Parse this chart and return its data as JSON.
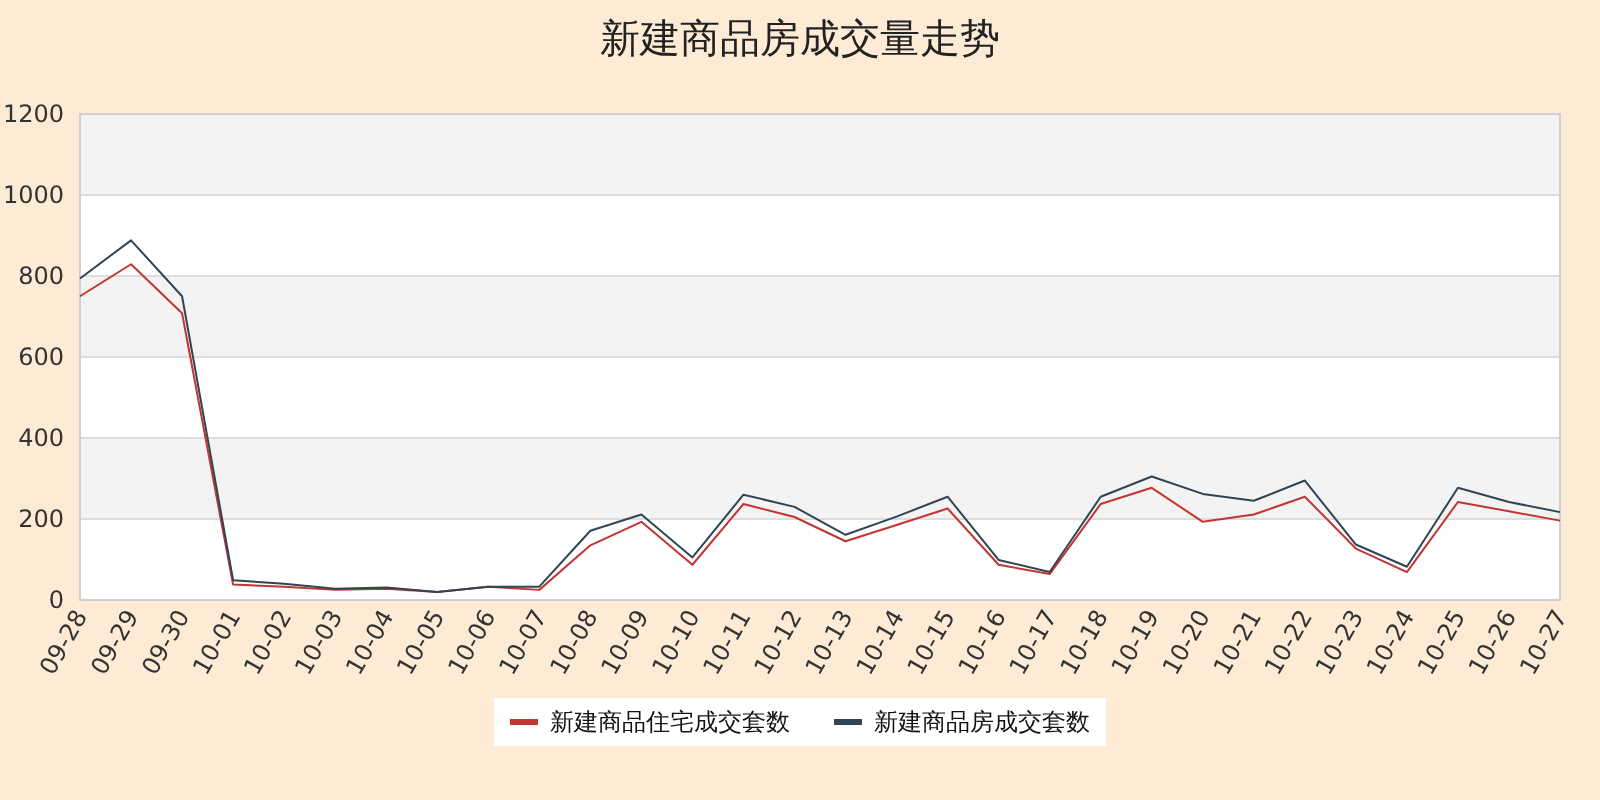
{
  "chart_data": {
    "type": "line",
    "title": "新建商品房成交量走势",
    "categories": [
      "09-28",
      "09-29",
      "09-30",
      "10-01",
      "10-02",
      "10-03",
      "10-04",
      "10-05",
      "10-06",
      "10-07",
      "10-08",
      "10-09",
      "10-10",
      "10-11",
      "10-12",
      "10-13",
      "10-14",
      "10-15",
      "10-16",
      "10-17",
      "10-18",
      "10-19",
      "10-20",
      "10-21",
      "10-22",
      "10-23",
      "10-24",
      "10-25",
      "10-26",
      "10-27"
    ],
    "series": [
      {
        "name": "新建商品住宅成交套数",
        "color": "#c23531",
        "values": [
          750,
          829,
          708,
          38,
          33,
          25,
          28,
          20,
          33,
          25,
          135,
          193,
          87,
          237,
          205,
          145,
          185,
          226,
          87,
          64,
          237,
          277,
          193,
          211,
          255,
          127,
          69,
          242,
          219,
          196
        ]
      },
      {
        "name": "新建商品房成交套数",
        "color": "#2f4554",
        "values": [
          794,
          888,
          750,
          49,
          40,
          28,
          31,
          20,
          33,
          33,
          171,
          211,
          105,
          260,
          230,
          161,
          206,
          255,
          99,
          69,
          255,
          305,
          262,
          245,
          295,
          137,
          82,
          277,
          242,
          217
        ]
      }
    ],
    "ylim": [
      0,
      1200
    ],
    "yticks": [
      0,
      200,
      400,
      600,
      800,
      1000,
      1200
    ],
    "grid": "y",
    "legend": "bottom",
    "marker": "none",
    "line_style": "solid"
  }
}
